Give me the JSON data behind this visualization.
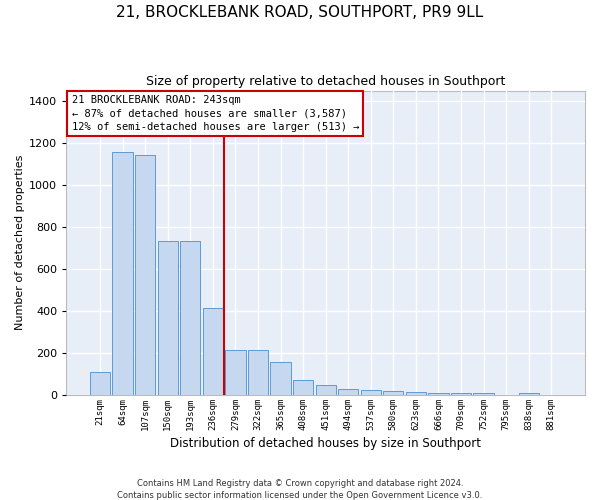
{
  "title": "21, BROCKLEBANK ROAD, SOUTHPORT, PR9 9LL",
  "subtitle": "Size of property relative to detached houses in Southport",
  "xlabel": "Distribution of detached houses by size in Southport",
  "ylabel": "Number of detached properties",
  "categories": [
    "21sqm",
    "64sqm",
    "107sqm",
    "150sqm",
    "193sqm",
    "236sqm",
    "279sqm",
    "322sqm",
    "365sqm",
    "408sqm",
    "451sqm",
    "494sqm",
    "537sqm",
    "580sqm",
    "623sqm",
    "666sqm",
    "709sqm",
    "752sqm",
    "795sqm",
    "838sqm",
    "881sqm"
  ],
  "values": [
    110,
    1155,
    1145,
    735,
    735,
    415,
    215,
    215,
    155,
    70,
    48,
    30,
    22,
    17,
    15,
    12,
    10,
    10,
    0,
    8,
    0
  ],
  "bar_color": "#c5d8f0",
  "bar_edge_color": "#5b9bd5",
  "vline_color": "#cc0000",
  "annotation_text": "21 BROCKLEBANK ROAD: 243sqm\n← 87% of detached houses are smaller (3,587)\n12% of semi-detached houses are larger (513) →",
  "annotation_box_color": "#cc0000",
  "footer": "Contains HM Land Registry data © Crown copyright and database right 2024.\nContains public sector information licensed under the Open Government Licence v3.0.",
  "ylim": [
    0,
    1450
  ],
  "yticks": [
    0,
    200,
    400,
    600,
    800,
    1000,
    1200,
    1400
  ],
  "bg_color": "#e8eef8",
  "grid_color": "#ffffff",
  "title_fontsize": 11,
  "subtitle_fontsize": 9,
  "footer_fontsize": 6
}
